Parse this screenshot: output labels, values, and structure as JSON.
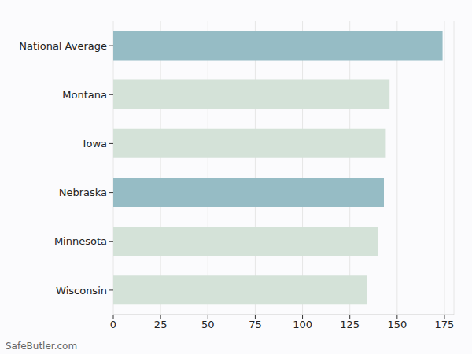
{
  "chart_data": {
    "type": "bar",
    "orientation": "horizontal",
    "categories": [
      "National Average",
      "Montana",
      "Iowa",
      "Nebraska",
      "Minnesota",
      "Wisconsin"
    ],
    "values": [
      174,
      146,
      144,
      143,
      140,
      134
    ],
    "colors": [
      "#96bcc5",
      "#d4e2d8",
      "#d4e2d8",
      "#96bcc5",
      "#d4e2d8",
      "#d4e2d8"
    ],
    "xlim": [
      0,
      180
    ],
    "xticks": [
      0,
      25,
      50,
      75,
      100,
      125,
      150,
      175
    ],
    "grid": true,
    "annotations": [
      "SafeButler.com"
    ]
  }
}
